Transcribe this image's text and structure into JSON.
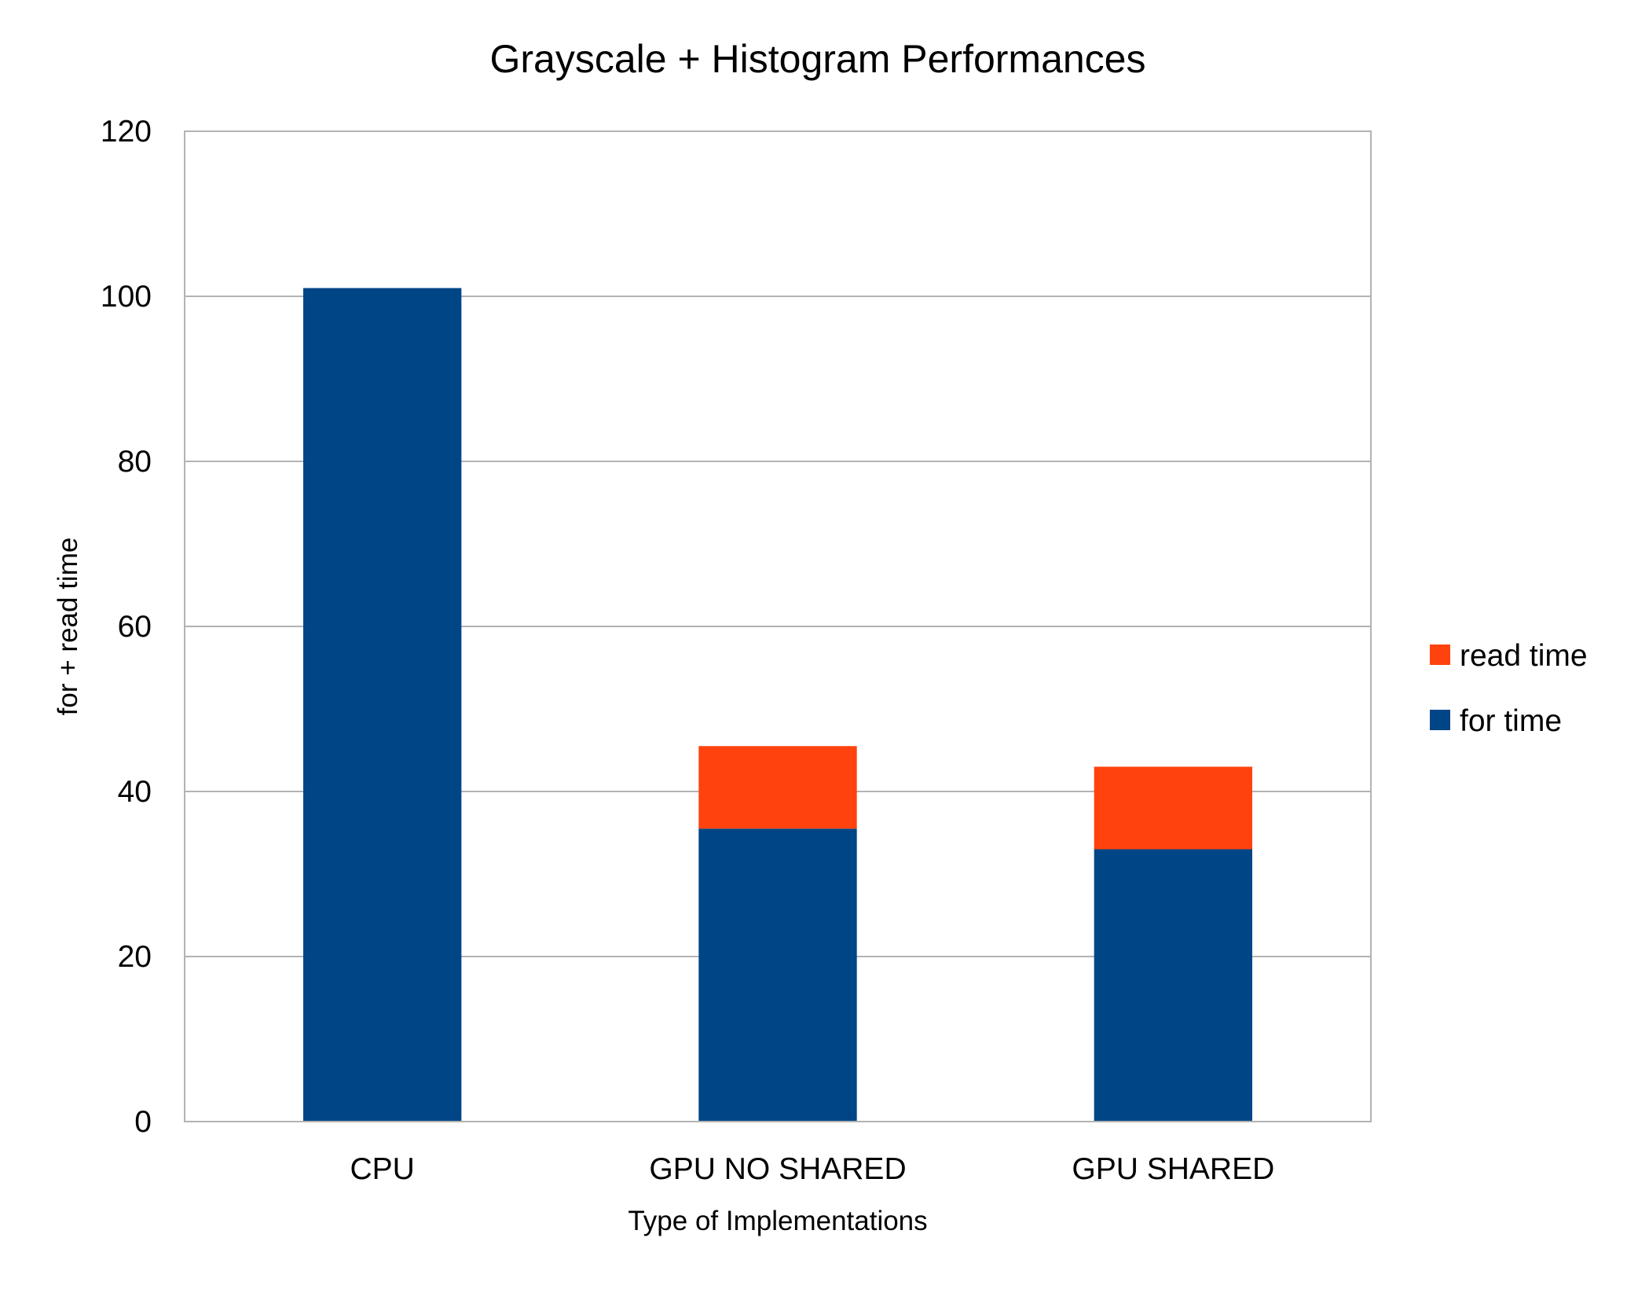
{
  "chart_data": {
    "type": "bar",
    "stacked": true,
    "title": "Grayscale + Histogram Performances",
    "xlabel": "Type of Implementations",
    "ylabel": "for + read time",
    "categories": [
      "CPU",
      "GPU NO SHARED",
      "GPU SHARED"
    ],
    "ylim": [
      0,
      120
    ],
    "yticks": [
      0,
      20,
      40,
      60,
      80,
      100,
      120
    ],
    "grid": true,
    "legend_position": "right",
    "series": [
      {
        "name": "for time",
        "values": [
          101,
          35.5,
          33
        ],
        "color": "#004586"
      },
      {
        "name": "read time",
        "values": [
          0,
          10,
          10
        ],
        "color": "#ff420e"
      }
    ],
    "legend_order": [
      "read time",
      "for time"
    ]
  }
}
